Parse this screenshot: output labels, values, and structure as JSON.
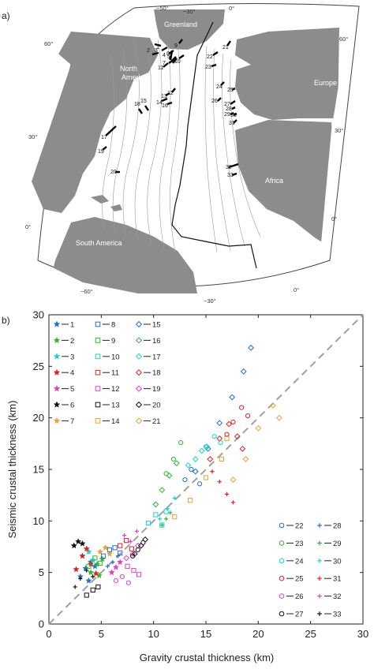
{
  "panel_a": {
    "label": "a)",
    "region_labels": [
      "Greenland",
      "North America",
      "Europe",
      "Africa",
      "South America"
    ],
    "lon_labels_top": [
      "−50°",
      "−30°",
      "0°"
    ],
    "lon_labels_bottom": [
      "−60°",
      "−30°",
      "0°"
    ],
    "lat_labels_left": [
      "60°",
      "30°",
      "0°"
    ],
    "lat_labels_right": [
      "60°",
      "30°",
      "0°"
    ],
    "sites": [
      "1",
      "2",
      "3",
      "4",
      "5",
      "6",
      "7",
      "8",
      "9",
      "10",
      "11",
      "12",
      "13",
      "14",
      "15",
      "16",
      "17",
      "18",
      "19",
      "20",
      "21",
      "22",
      "23",
      "24",
      "25",
      "26",
      "27",
      "28",
      "29",
      "30",
      "31",
      "32",
      "33"
    ],
    "colors": {
      "land": "#8c8c8c",
      "ocean": "#ffffff",
      "contour": "#9a9a9a",
      "ridge": "#111111",
      "frame": "#444444"
    }
  },
  "panel_b": {
    "label": "b)",
    "chart_data": {
      "type": "scatter",
      "xlabel": "Gravity crustal thickness (km)",
      "ylabel": "Seismic crustal thickness (km)",
      "xlim": [
        0,
        30
      ],
      "ylim": [
        0,
        30
      ],
      "xticks": [
        "0",
        "5",
        "10",
        "15",
        "20",
        "25",
        "30"
      ],
      "yticks": [
        "0",
        "5",
        "10",
        "15",
        "20",
        "25",
        "30"
      ],
      "reference_line": "1:1 dashed",
      "grid": false,
      "legend_placement": [
        "top-left",
        "bottom-right"
      ],
      "series": [
        {
          "name": "1",
          "color": "#1f6fd6",
          "marker": "star",
          "x": [
            3.0,
            3.5,
            4.0,
            4.4,
            3.8
          ],
          "y": [
            4.6,
            5.4,
            6.0,
            5.6,
            4.2
          ]
        },
        {
          "name": "2",
          "color": "#2eb82e",
          "marker": "star",
          "x": [
            4.0,
            4.6,
            5.1,
            4.8
          ],
          "y": [
            5.0,
            5.8,
            6.3,
            4.7
          ]
        },
        {
          "name": "3",
          "color": "#19d3d3",
          "marker": "star",
          "x": [
            3.2,
            3.8,
            4.2
          ],
          "y": [
            6.6,
            7.0,
            6.2
          ]
        },
        {
          "name": "4",
          "color": "#e02020",
          "marker": "star",
          "x": [
            2.6,
            3.2,
            3.6,
            4.0,
            4.5
          ],
          "y": [
            5.3,
            6.6,
            7.3,
            5.8,
            4.9
          ]
        },
        {
          "name": "5",
          "color": "#e040c8",
          "marker": "star",
          "x": [
            6.0,
            6.4,
            6.8
          ],
          "y": [
            5.0,
            5.5,
            6.0
          ]
        },
        {
          "name": "6",
          "color": "#111111",
          "marker": "star",
          "x": [
            2.4,
            2.8,
            3.2
          ],
          "y": [
            7.6,
            8.0,
            7.8
          ]
        },
        {
          "name": "7",
          "color": "#f0a030",
          "marker": "star",
          "x": [
            4.9,
            5.4,
            5.8
          ],
          "y": [
            7.0,
            7.4,
            6.8
          ]
        },
        {
          "name": "8",
          "color": "#1f6fd6",
          "marker": "square",
          "x": [
            5.2,
            5.8,
            6.3,
            6.8
          ],
          "y": [
            6.6,
            7.2,
            7.4,
            6.9
          ]
        },
        {
          "name": "9",
          "color": "#2eb82e",
          "marker": "square",
          "x": [
            3.8,
            4.4,
            4.9
          ],
          "y": [
            5.6,
            6.4,
            5.9
          ]
        },
        {
          "name": "10",
          "color": "#19d3d3",
          "marker": "square",
          "x": [
            9.5,
            10.2,
            10.8,
            11.2
          ],
          "y": [
            9.8,
            10.6,
            9.6,
            10.9
          ]
        },
        {
          "name": "11",
          "color": "#e02020",
          "marker": "square",
          "x": [
            6.8,
            7.4,
            7.9
          ],
          "y": [
            7.6,
            8.1,
            7.3
          ]
        },
        {
          "name": "12",
          "color": "#e040c8",
          "marker": "square",
          "x": [
            7.5,
            8.1,
            8.6
          ],
          "y": [
            5.6,
            5.2,
            4.8
          ]
        },
        {
          "name": "13",
          "color": "#111111",
          "marker": "square",
          "x": [
            3.6,
            4.2,
            4.7
          ],
          "y": [
            2.8,
            3.3,
            3.6
          ]
        },
        {
          "name": "14",
          "color": "#f0a030",
          "marker": "square",
          "x": [
            12.0,
            13.5,
            15.0,
            16.5,
            17.0
          ],
          "y": [
            10.4,
            12.0,
            14.2,
            16.0,
            18.0
          ]
        },
        {
          "name": "15",
          "color": "#1f6fd6",
          "marker": "diamond",
          "x": [
            14.0,
            15.2,
            16.3,
            17.5,
            18.6,
            19.3
          ],
          "y": [
            14.8,
            17.0,
            19.5,
            22.0,
            24.5,
            26.8
          ]
        },
        {
          "name": "16",
          "color": "#2eb82e",
          "marker": "diamond",
          "x": [
            10.2,
            10.8,
            11.5,
            12.2
          ],
          "y": [
            11.6,
            13.0,
            14.4,
            15.6
          ]
        },
        {
          "name": "17",
          "color": "#19d3d3",
          "marker": "diamond",
          "x": [
            13.3,
            14.0,
            14.6,
            15.1
          ],
          "y": [
            15.4,
            16.0,
            16.8,
            17.2
          ]
        },
        {
          "name": "18",
          "color": "#e02020",
          "marker": "diamond",
          "x": [
            15.4,
            16.3,
            17.2,
            18.0,
            18.5
          ],
          "y": [
            16.0,
            18.0,
            19.4,
            18.2,
            17.0
          ]
        },
        {
          "name": "19",
          "color": "#e040c8",
          "marker": "diamond",
          "x": [
            7.4,
            8.0,
            8.5
          ],
          "y": [
            6.4,
            6.8,
            7.6
          ]
        },
        {
          "name": "20",
          "color": "#111111",
          "marker": "diamond",
          "x": [
            8.2,
            8.8,
            9.2
          ],
          "y": [
            6.8,
            7.6,
            8.2
          ]
        },
        {
          "name": "21",
          "color": "#f0a030",
          "marker": "diamond",
          "x": [
            17.6,
            18.8,
            20.0,
            21.4,
            22.0
          ],
          "y": [
            14.0,
            16.0,
            19.0,
            21.2,
            20.0
          ]
        },
        {
          "name": "22",
          "color": "#1f6fd6",
          "marker": "circle",
          "x": [
            13.0,
            13.6,
            14.4
          ],
          "y": [
            14.0,
            15.0,
            13.6
          ]
        },
        {
          "name": "23",
          "color": "#2eb82e",
          "marker": "circle",
          "x": [
            11.2,
            11.9,
            12.6
          ],
          "y": [
            14.6,
            16.0,
            17.6
          ]
        },
        {
          "name": "24",
          "color": "#19d3d3",
          "marker": "circle",
          "x": [
            15.0,
            15.8,
            16.4
          ],
          "y": [
            17.2,
            18.2,
            17.6
          ]
        },
        {
          "name": "25",
          "color": "#e02020",
          "marker": "circle",
          "x": [
            17.0,
            17.6,
            18.4,
            19.0
          ],
          "y": [
            18.4,
            19.6,
            21.0,
            20.2
          ]
        },
        {
          "name": "26",
          "color": "#e040c8",
          "marker": "circle",
          "x": [
            6.4,
            7.0,
            7.6
          ],
          "y": [
            4.2,
            4.6,
            4.0
          ]
        },
        {
          "name": "27",
          "color": "#111111",
          "marker": "circle",
          "x": [
            8.0,
            8.5,
            9.0
          ],
          "y": [
            6.6,
            7.2,
            7.9
          ]
        },
        {
          "name": "28",
          "color": "#1f6fd6",
          "marker": "plus",
          "x": [
            5.6,
            6.1,
            6.6
          ],
          "y": [
            5.6,
            6.0,
            6.6
          ]
        },
        {
          "name": "29",
          "color": "#2eb82e",
          "marker": "plus",
          "x": [
            10.8,
            11.2,
            11.6
          ],
          "y": [
            9.6,
            10.2,
            10.8
          ]
        },
        {
          "name": "30",
          "color": "#19d3d3",
          "marker": "plus",
          "x": [
            10.6,
            11.3,
            12.0
          ],
          "y": [
            10.2,
            11.2,
            12.2
          ]
        },
        {
          "name": "31",
          "color": "#e02020",
          "marker": "plus",
          "x": [
            15.6,
            16.3,
            17.0,
            17.6
          ],
          "y": [
            14.8,
            13.8,
            12.6,
            11.8
          ]
        },
        {
          "name": "32",
          "color": "#e040c8",
          "marker": "plus",
          "x": [
            7.2,
            7.8,
            8.4
          ],
          "y": [
            8.6,
            8.0,
            9.0
          ]
        },
        {
          "name": "33",
          "color": "#111111",
          "marker": "plus",
          "x": [
            2.5,
            3.0,
            3.6,
            4.2
          ],
          "y": [
            3.6,
            4.4,
            5.2,
            4.6
          ]
        }
      ]
    }
  }
}
